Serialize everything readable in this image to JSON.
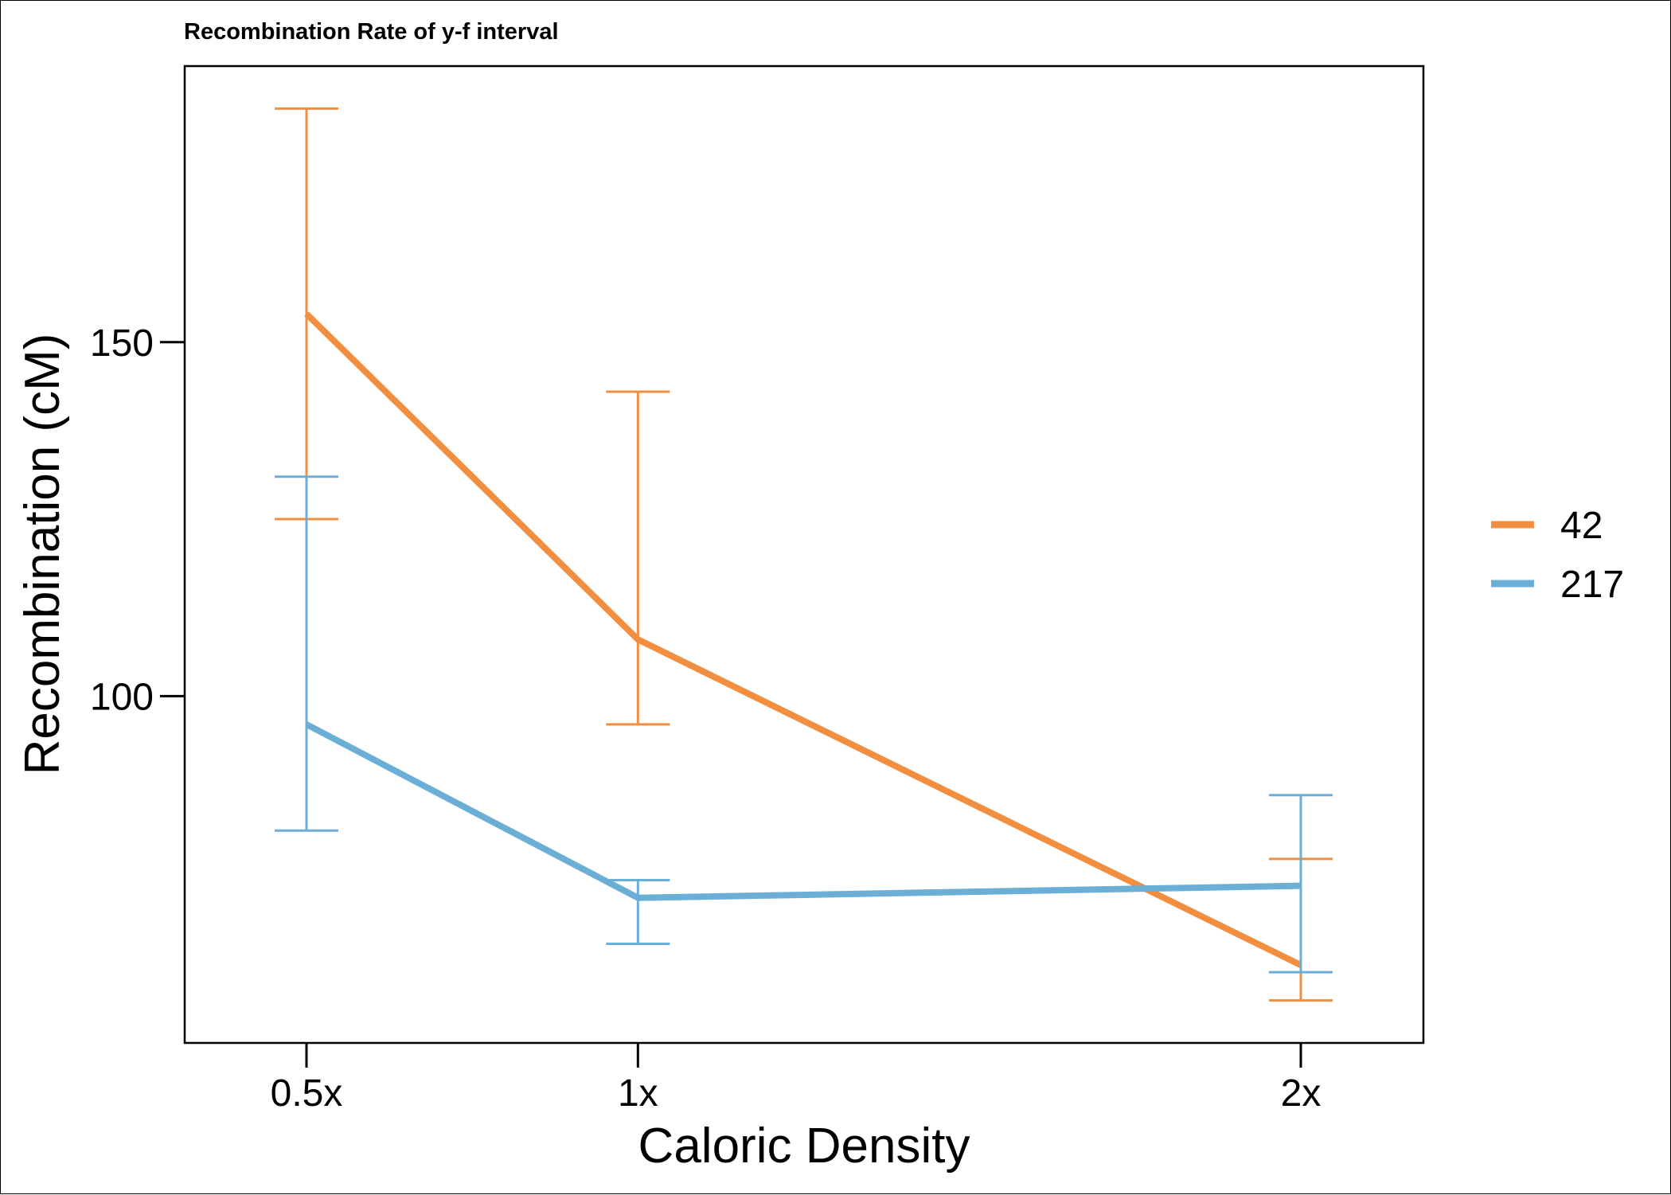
{
  "chart_data": {
    "type": "line",
    "title": "Recombination Rate of y-f interval",
    "xlabel": "Caloric Density",
    "ylabel": "Recombination (cM)",
    "x": [
      "0.5x",
      "1x",
      "2x"
    ],
    "x_numeric": [
      0.5,
      1,
      2
    ],
    "ylim": [
      51,
      189
    ],
    "yticks": [
      100,
      150
    ],
    "ytick_labels": [
      "100",
      "150"
    ],
    "grid": false,
    "legend_position": "right",
    "series": [
      {
        "name": "42",
        "color": "#F28E3F",
        "values": [
          154,
          108,
          62
        ],
        "error_low": [
          125,
          96,
          57
        ],
        "error_high": [
          183,
          143,
          77
        ]
      },
      {
        "name": "217",
        "color": "#6BAED6",
        "values": [
          96,
          71.5,
          73.2
        ],
        "error_low": [
          81,
          65,
          61
        ],
        "error_high": [
          131,
          74,
          86
        ]
      }
    ]
  }
}
